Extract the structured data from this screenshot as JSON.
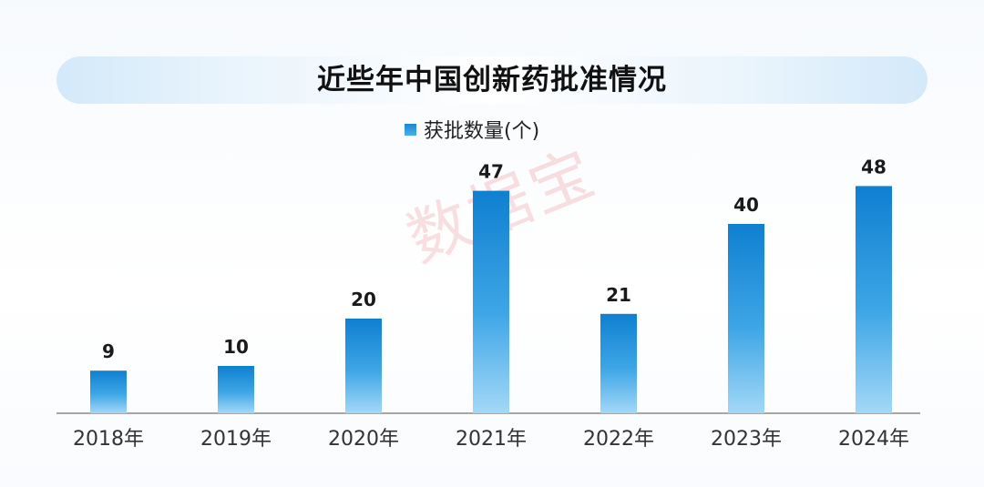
{
  "title": "近些年中国创新药批准情况",
  "watermark": "数据宝",
  "chart_data": {
    "type": "bar",
    "categories": [
      "2018年",
      "2019年",
      "2020年",
      "2021年",
      "2022年",
      "2023年",
      "2024年"
    ],
    "series": [
      {
        "name": "获批数量(个)",
        "values": [
          9,
          10,
          20,
          47,
          21,
          40,
          48
        ]
      }
    ],
    "data_labels": true,
    "legend_position": "top-center",
    "grid": false,
    "colors": {
      "bar_top": "#0f7fd0",
      "bar_bottom": "#9fd6f6",
      "axis": "#888888"
    }
  }
}
